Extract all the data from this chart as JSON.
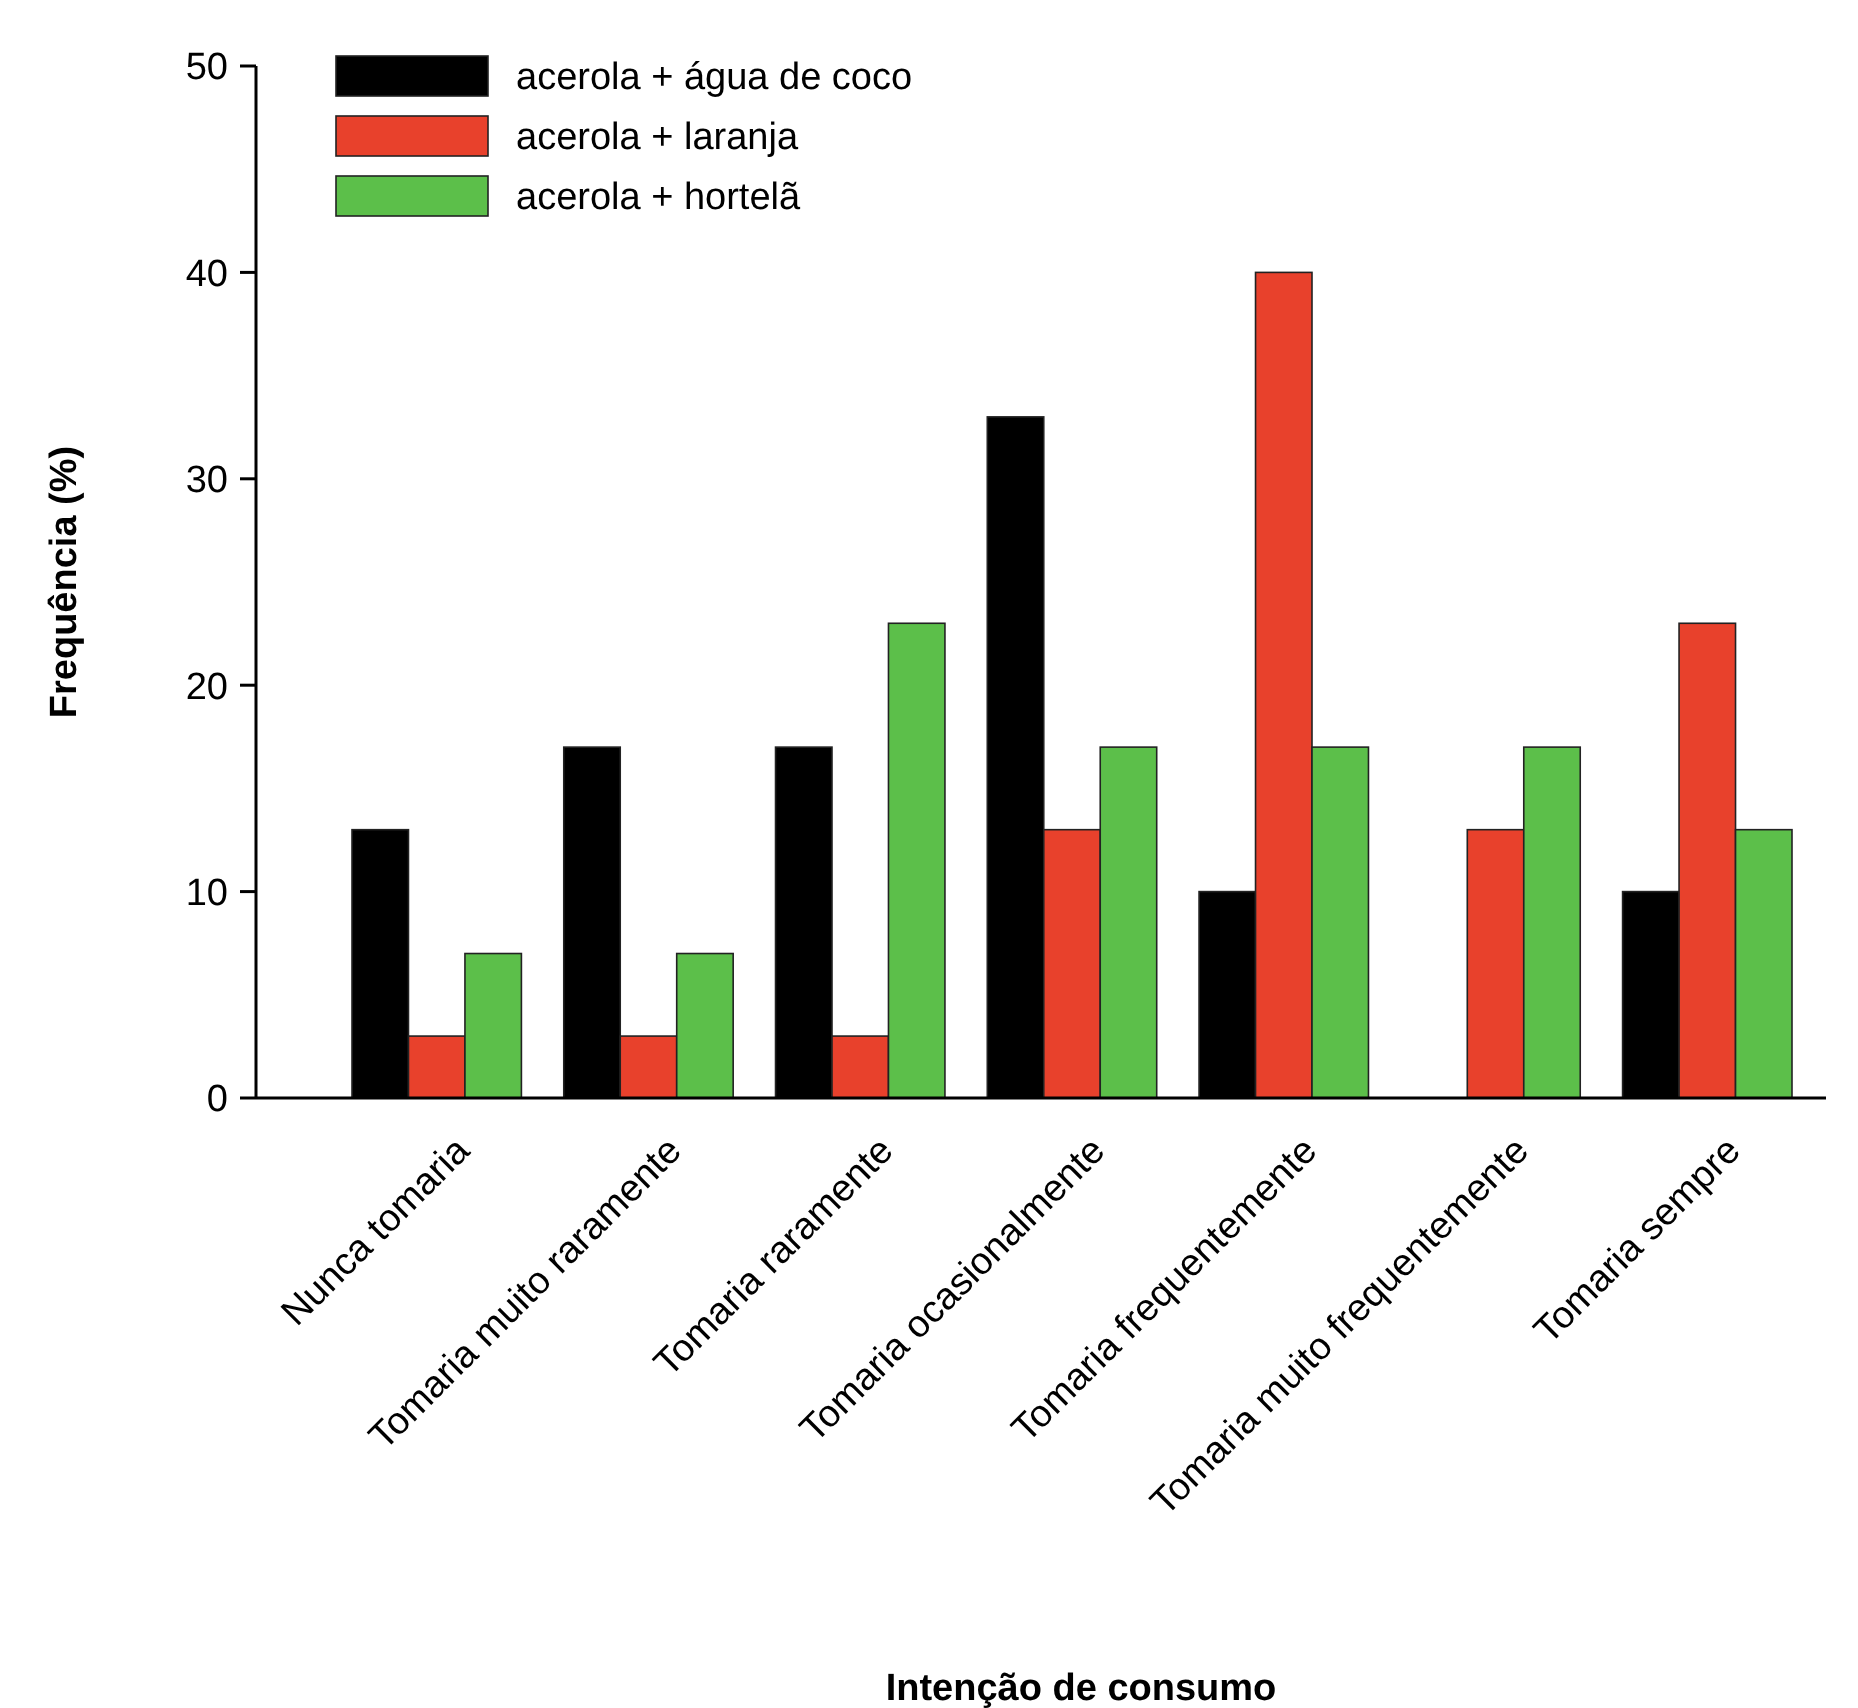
{
  "chart_data": {
    "type": "bar",
    "xlabel": "Intenção de consumo",
    "ylabel": "Frequência (%)",
    "categories": [
      "Nunca tomaria",
      "Tomaria muito raramente",
      "Tomaria raramente",
      "Tomaria ocasionalmente",
      "Tomaria frequentemente",
      "Tomaria muito frequentemente",
      "Tomaria sempre"
    ],
    "series": [
      {
        "name": "acerola + água de coco",
        "color": "#000000",
        "values": [
          13,
          17,
          17,
          33,
          10,
          0,
          10
        ]
      },
      {
        "name": "acerola + laranja",
        "color": "#e8412c",
        "values": [
          3,
          3,
          3,
          13,
          40,
          13,
          23
        ]
      },
      {
        "name": "acerola + hortelã",
        "color": "#5cbf4a",
        "values": [
          7,
          7,
          23,
          17,
          17,
          17,
          13
        ]
      }
    ],
    "ylim": [
      0,
      50
    ],
    "yticks": [
      0,
      10,
      20,
      30,
      40,
      50
    ],
    "grid": false,
    "legend": "top left"
  }
}
